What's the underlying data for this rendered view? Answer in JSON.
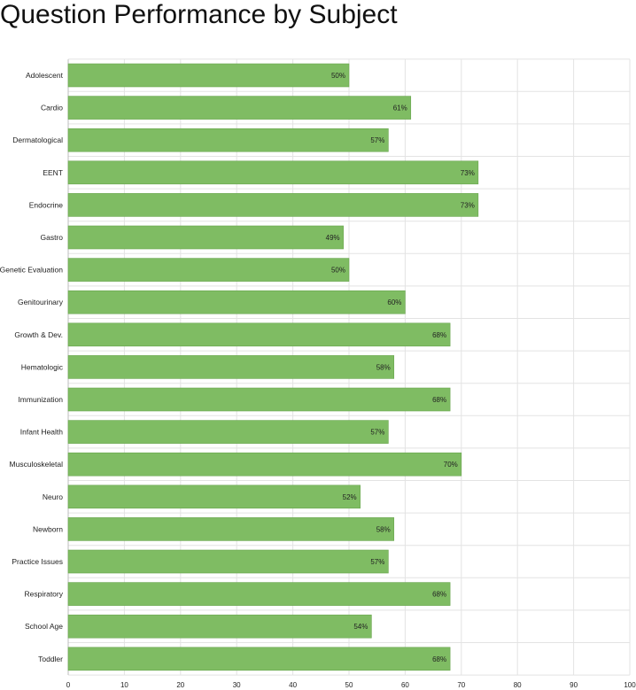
{
  "title": "Question Performance by Subject",
  "colors": {
    "bar": "#7fbc63",
    "bar_stroke": "#6aa64f",
    "grid": "#e3e3e3",
    "axis": "#bdbdbd"
  },
  "chart_data": {
    "type": "bar",
    "orientation": "horizontal",
    "title": "Question Performance by Subject",
    "xlabel": "",
    "ylabel": "",
    "xlim": [
      0,
      100
    ],
    "x_ticks": [
      0,
      10,
      20,
      30,
      40,
      50,
      60,
      70,
      80,
      90,
      100
    ],
    "grid": true,
    "categories": [
      "Adolescent",
      "Cardio",
      "Dermatological",
      "EENT",
      "Endocrine",
      "Gastro",
      "Genetic Evaluation",
      "Genitourinary",
      "Growth & Dev.",
      "Hematologic",
      "Immunization",
      "Infant Health",
      "Musculoskeletal",
      "Neuro",
      "Newborn",
      "Practice Issues",
      "Respiratory",
      "School Age",
      "Toddler"
    ],
    "values": [
      50,
      61,
      57,
      73,
      73,
      49,
      50,
      60,
      68,
      58,
      68,
      57,
      70,
      52,
      58,
      57,
      68,
      54,
      68
    ],
    "value_labels": [
      "50%",
      "61%",
      "57%",
      "73%",
      "73%",
      "49%",
      "50%",
      "60%",
      "68%",
      "58%",
      "68%",
      "57%",
      "70%",
      "52%",
      "58%",
      "57%",
      "68%",
      "54%",
      "68%"
    ]
  }
}
